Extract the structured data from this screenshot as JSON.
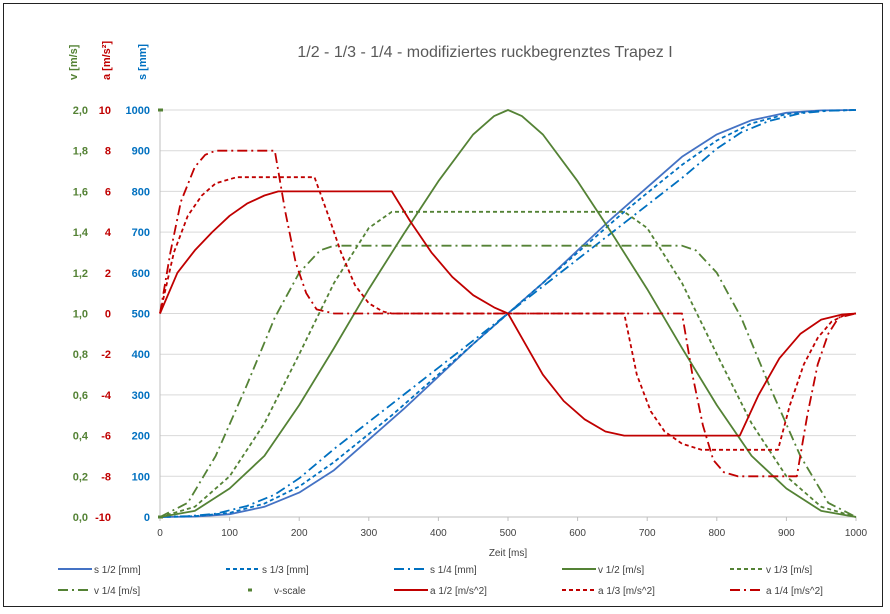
{
  "chart_data": {
    "type": "line",
    "title": "1/2 - 1/3 - 1/4 - modifiziertes ruckbegrenztes Trapez  I",
    "xlabel": "Zeit [ms]",
    "xlim": [
      0,
      1000
    ],
    "xticks": [
      "0",
      "100",
      "200",
      "300",
      "400",
      "500",
      "600",
      "700",
      "800",
      "900",
      "1000"
    ],
    "axes": {
      "v": {
        "label": "v [m/s]",
        "lim": [
          0,
          2
        ],
        "color": "#548235",
        "ticks": [
          "0,0",
          "0,2",
          "0,4",
          "0,6",
          "0,8",
          "1,0",
          "1,2",
          "1,4",
          "1,6",
          "1,8",
          "2,0"
        ]
      },
      "a": {
        "label": "a [m/s²]",
        "lim": [
          -10,
          10
        ],
        "color": "#c00000",
        "ticks": [
          "-10",
          "-8",
          "-6",
          "-4",
          "-2",
          "0",
          "2",
          "4",
          "6",
          "8",
          "10"
        ]
      },
      "s": {
        "label": "s [mm]",
        "lim": [
          0,
          1000
        ],
        "color": "#0070c0",
        "ticks": [
          "0",
          "100",
          "200",
          "300",
          "400",
          "500",
          "600",
          "700",
          "800",
          "900",
          "1000"
        ]
      }
    },
    "grid": "horizontal",
    "legend_position": "bottom",
    "series": [
      {
        "name": "s 1/2 [mm]",
        "axis": "s",
        "color": "#4472c4",
        "dash": "solid",
        "mirror": true,
        "points": [
          [
            0,
            0
          ],
          [
            50,
            1
          ],
          [
            100,
            7
          ],
          [
            150,
            25
          ],
          [
            200,
            60
          ],
          [
            250,
            115
          ],
          [
            300,
            190
          ],
          [
            350,
            265
          ],
          [
            400,
            345
          ],
          [
            450,
            425
          ],
          [
            500,
            500
          ]
        ]
      },
      {
        "name": "s 1/3 [mm]",
        "axis": "s",
        "color": "#0070c0",
        "dash": "dash",
        "mirror": true,
        "points": [
          [
            0,
            0
          ],
          [
            50,
            2
          ],
          [
            100,
            10
          ],
          [
            150,
            33
          ],
          [
            200,
            75
          ],
          [
            250,
            135
          ],
          [
            300,
            204
          ],
          [
            333,
            250
          ],
          [
            500,
            500
          ]
        ]
      },
      {
        "name": "s 1/4 [mm]",
        "axis": "s",
        "color": "#0070c0",
        "dash": "dashdot",
        "mirror": true,
        "points": [
          [
            0,
            0
          ],
          [
            40,
            2
          ],
          [
            80,
            8
          ],
          [
            125,
            27
          ],
          [
            165,
            55
          ],
          [
            200,
            95
          ],
          [
            250,
            167
          ],
          [
            500,
            500
          ]
        ]
      },
      {
        "name": "v 1/2 [m/s]",
        "axis": "v",
        "color": "#548235",
        "dash": "solid",
        "mirror": true,
        "points": [
          [
            0,
            0
          ],
          [
            50,
            0.03
          ],
          [
            100,
            0.14
          ],
          [
            150,
            0.3
          ],
          [
            200,
            0.55
          ],
          [
            250,
            0.83
          ],
          [
            300,
            1.12
          ],
          [
            350,
            1.39
          ],
          [
            400,
            1.65
          ],
          [
            450,
            1.88
          ],
          [
            480,
            1.97
          ],
          [
            500,
            2.0
          ]
        ]
      },
      {
        "name": "v 1/3 [m/s]",
        "axis": "v",
        "color": "#548235",
        "dash": "dash",
        "mirror": true,
        "points": [
          [
            0,
            0
          ],
          [
            50,
            0.05
          ],
          [
            100,
            0.2
          ],
          [
            150,
            0.46
          ],
          [
            200,
            0.8
          ],
          [
            250,
            1.15
          ],
          [
            300,
            1.42
          ],
          [
            333,
            1.5
          ],
          [
            500,
            1.5
          ]
        ]
      },
      {
        "name": "v 1/4 [m/s]",
        "axis": "v",
        "color": "#548235",
        "dash": "dashdot",
        "mirror": true,
        "points": [
          [
            0,
            0
          ],
          [
            40,
            0.07
          ],
          [
            80,
            0.3
          ],
          [
            125,
            0.65
          ],
          [
            165,
            0.98
          ],
          [
            200,
            1.2
          ],
          [
            230,
            1.31
          ],
          [
            250,
            1.333
          ],
          [
            500,
            1.333
          ]
        ]
      },
      {
        "name": "v-scale",
        "axis": "v",
        "color": "#548235",
        "dash": "marker",
        "mirror": false,
        "points": [
          [
            0,
            0
          ],
          [
            0,
            2
          ]
        ]
      },
      {
        "name": "a 1/2 [m/s^2]",
        "axis": "a",
        "color": "#c00000",
        "dash": "solid",
        "mirror": false,
        "points": [
          [
            0,
            0
          ],
          [
            25,
            2
          ],
          [
            50,
            3.1
          ],
          [
            75,
            4
          ],
          [
            100,
            4.8
          ],
          [
            125,
            5.4
          ],
          [
            150,
            5.8
          ],
          [
            170,
            6
          ],
          [
            333,
            6
          ],
          [
            360,
            4.5
          ],
          [
            390,
            3
          ],
          [
            420,
            1.8
          ],
          [
            450,
            0.9
          ],
          [
            480,
            0.3
          ],
          [
            500,
            0
          ],
          [
            520,
            -1.2
          ],
          [
            550,
            -3
          ],
          [
            580,
            -4.3
          ],
          [
            610,
            -5.2
          ],
          [
            640,
            -5.8
          ],
          [
            667,
            -6
          ],
          [
            833,
            -6
          ],
          [
            860,
            -4
          ],
          [
            890,
            -2.2
          ],
          [
            920,
            -1
          ],
          [
            950,
            -0.3
          ],
          [
            980,
            -0.05
          ],
          [
            1000,
            0
          ]
        ]
      },
      {
        "name": "a 1/3 [m/s^2]",
        "axis": "a",
        "color": "#c00000",
        "dash": "dash",
        "mirror": false,
        "points": [
          [
            0,
            0
          ],
          [
            20,
            3
          ],
          [
            40,
            4.8
          ],
          [
            60,
            5.8
          ],
          [
            80,
            6.4
          ],
          [
            110,
            6.7
          ],
          [
            222,
            6.7
          ],
          [
            240,
            5
          ],
          [
            260,
            3
          ],
          [
            280,
            1.4
          ],
          [
            300,
            0.5
          ],
          [
            320,
            0.1
          ],
          [
            333,
            0
          ],
          [
            667,
            0
          ],
          [
            685,
            -3
          ],
          [
            705,
            -4.8
          ],
          [
            725,
            -5.8
          ],
          [
            750,
            -6.4
          ],
          [
            778,
            -6.7
          ],
          [
            888,
            -6.7
          ],
          [
            905,
            -4.5
          ],
          [
            925,
            -2.5
          ],
          [
            945,
            -1.2
          ],
          [
            965,
            -0.4
          ],
          [
            985,
            -0.05
          ],
          [
            1000,
            0
          ]
        ]
      },
      {
        "name": "a 1/4 [m/s^2]",
        "axis": "a",
        "color": "#c00000",
        "dash": "dashdot",
        "mirror": false,
        "points": [
          [
            0,
            0
          ],
          [
            15,
            3
          ],
          [
            30,
            5.5
          ],
          [
            50,
            7.2
          ],
          [
            65,
            7.8
          ],
          [
            80,
            8
          ],
          [
            165,
            8
          ],
          [
            180,
            5
          ],
          [
            195,
            2.5
          ],
          [
            210,
            1
          ],
          [
            225,
            0.2
          ],
          [
            250,
            0
          ],
          [
            750,
            0
          ],
          [
            765,
            -3
          ],
          [
            780,
            -5.5
          ],
          [
            795,
            -7.2
          ],
          [
            810,
            -7.8
          ],
          [
            830,
            -8
          ],
          [
            915,
            -8
          ],
          [
            930,
            -5
          ],
          [
            945,
            -2.5
          ],
          [
            960,
            -1
          ],
          [
            975,
            -0.2
          ],
          [
            1000,
            0
          ]
        ]
      }
    ]
  }
}
